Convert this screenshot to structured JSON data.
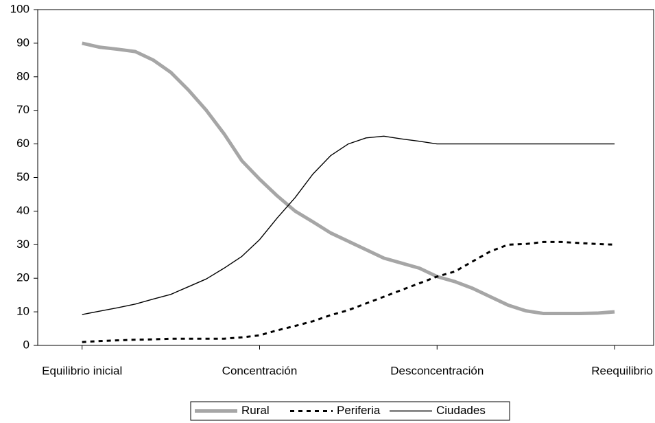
{
  "chart_data": {
    "type": "line",
    "x": [
      0,
      1,
      2,
      3,
      4,
      5,
      6,
      7,
      8,
      9,
      10,
      11,
      12,
      13,
      14,
      15,
      16,
      17,
      18,
      19,
      20,
      21,
      22,
      23,
      24,
      25,
      26,
      27,
      28,
      29,
      30
    ],
    "xlim": [
      -2.5,
      32.2
    ],
    "xticks": [
      {
        "value": 0,
        "label": "Equilibrio inicial"
      },
      {
        "value": 10,
        "label": "Concentración"
      },
      {
        "value": 20,
        "label": "Desconcentración"
      },
      {
        "value": 30,
        "label": "Reequilibrio"
      }
    ],
    "ylim": [
      0,
      100
    ],
    "yticks": [
      0,
      10,
      20,
      30,
      40,
      50,
      60,
      70,
      80,
      90,
      100
    ],
    "grid": false,
    "legend": "bottom",
    "series": [
      {
        "name": "Rural",
        "color": "#a6a6a6",
        "line_style": "thick",
        "values": [
          90,
          88.8,
          88.2,
          87.5,
          85,
          81.3,
          76,
          70,
          63,
          55,
          49.5,
          44.5,
          40,
          36.8,
          33.5,
          31,
          28.5,
          26,
          24.5,
          23,
          20.5,
          19,
          17,
          14.5,
          12,
          10.3,
          9.5,
          9.5,
          9.5,
          9.6,
          10
        ]
      },
      {
        "name": "Periferia",
        "color": "#000000",
        "line_style": "dashed",
        "values": [
          1,
          1.3,
          1.5,
          1.7,
          1.8,
          2,
          2,
          2,
          2,
          2.4,
          3,
          4.5,
          5.8,
          7.2,
          9,
          10.5,
          12.5,
          14.5,
          16.5,
          18.5,
          20.5,
          22,
          25,
          28,
          30,
          30.2,
          30.8,
          30.8,
          30.5,
          30.2,
          30
        ]
      },
      {
        "name": "Ciudades",
        "color": "#000000",
        "line_style": "thin",
        "values": [
          9.2,
          10.2,
          11.2,
          12.3,
          13.8,
          15.2,
          17.5,
          19.8,
          23,
          26.5,
          31.5,
          38,
          44,
          51,
          56.5,
          60,
          61.8,
          62.3,
          61.5,
          60.8,
          60,
          60,
          60,
          60,
          60,
          60,
          60,
          60,
          60,
          60,
          60
        ]
      }
    ]
  }
}
